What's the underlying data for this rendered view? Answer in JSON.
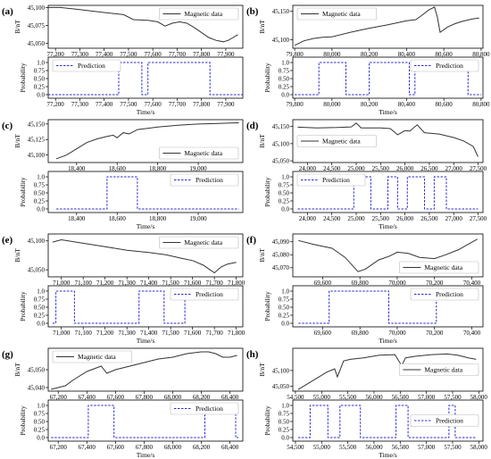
{
  "colors": {
    "magnetic": "#333333",
    "prediction": "#2b2bd6",
    "axis": "#000000"
  },
  "labels": {
    "mag_ylabel": "B/nT",
    "prob_ylabel": "Probability",
    "xlabel": "Time/s"
  },
  "chart_data": [
    {
      "panel": "(a)",
      "type": "line",
      "mag_legend": "Magnetic data",
      "mag_legend_pos": "top-right",
      "pred_legend": "Prediction",
      "pred_legend_pos": "top-left",
      "xlim": [
        77170,
        77970
      ],
      "xticks": [
        77200,
        77300,
        77400,
        77500,
        77600,
        77700,
        77800,
        77900
      ],
      "mag_ylim": [
        45043,
        45103
      ],
      "mag_yticks": [
        45050,
        45075,
        45100
      ],
      "mag_x": [
        77170,
        77220,
        77300,
        77400,
        77480,
        77520,
        77580,
        77620,
        77650,
        77680,
        77710,
        77740,
        77770,
        77800,
        77830,
        77860,
        77890,
        77910,
        77930,
        77950
      ],
      "mag_y": [
        45100,
        45100,
        45097,
        45093,
        45090,
        45083,
        45082,
        45080,
        45074,
        45078,
        45080,
        45078,
        45072,
        45065,
        45058,
        45054,
        45052,
        45054,
        45058,
        45062
      ],
      "pred": [
        [
          77170,
          0
        ],
        [
          77460,
          0
        ],
        [
          77460,
          1
        ],
        [
          77555,
          1
        ],
        [
          77555,
          0
        ],
        [
          77580,
          0
        ],
        [
          77580,
          1
        ],
        [
          77835,
          1
        ],
        [
          77835,
          0
        ],
        [
          77970,
          0
        ]
      ]
    },
    {
      "panel": "(b)",
      "type": "line",
      "mag_legend": "Magnetic data",
      "mag_legend_pos": "top-left",
      "pred_legend": "Prediction",
      "pred_legend_pos": "top-right",
      "xlim": [
        79790,
        80810
      ],
      "xticks": [
        79800,
        80000,
        80200,
        80400,
        80600,
        80800
      ],
      "mag_ylim": [
        45085,
        45160
      ],
      "mag_yticks": [
        45100,
        45150
      ],
      "mag_x": [
        79800,
        79850,
        79900,
        79950,
        80000,
        80100,
        80200,
        80300,
        80400,
        80450,
        80480,
        80520,
        80550,
        80565,
        80580,
        80620,
        80660,
        80700,
        80750,
        80790
      ],
      "mag_y": [
        45090,
        45098,
        45102,
        45104,
        45105,
        45113,
        45120,
        45126,
        45133,
        45135,
        45142,
        45152,
        45157,
        45140,
        45113,
        45122,
        45128,
        45132,
        45136,
        45138
      ],
      "pred": [
        [
          79800,
          0
        ],
        [
          79930,
          0
        ],
        [
          79930,
          1
        ],
        [
          80075,
          1
        ],
        [
          80075,
          0
        ],
        [
          80200,
          0
        ],
        [
          80200,
          1
        ],
        [
          80415,
          1
        ],
        [
          80415,
          0
        ],
        [
          80445,
          0
        ],
        [
          80445,
          1
        ],
        [
          80730,
          1
        ],
        [
          80730,
          0
        ],
        [
          80800,
          0
        ]
      ]
    },
    {
      "panel": "(c)",
      "type": "line",
      "mag_legend": "Magnetic data",
      "mag_legend_pos": "bottom-right",
      "pred_legend": "Prediction",
      "pred_legend_pos": "top-right",
      "xlim": [
        18260,
        19220
      ],
      "xticks": [
        18400,
        18600,
        18800,
        19000
      ],
      "mag_ylim": [
        45088,
        45157
      ],
      "mag_yticks": [
        45100,
        45125,
        45150
      ],
      "mag_x": [
        18300,
        18350,
        18400,
        18450,
        18500,
        18550,
        18580,
        18600,
        18630,
        18660,
        18700,
        18750,
        18800,
        18900,
        19000,
        19100,
        19200
      ],
      "mag_y": [
        45094,
        45100,
        45110,
        45120,
        45126,
        45130,
        45132,
        45128,
        45136,
        45134,
        45141,
        45143,
        45145,
        45148,
        45150,
        45151,
        45152
      ],
      "pred": [
        [
          18300,
          0
        ],
        [
          18550,
          0
        ],
        [
          18550,
          1
        ],
        [
          18700,
          1
        ],
        [
          18700,
          0
        ],
        [
          19200,
          0
        ]
      ]
    },
    {
      "panel": "(d)",
      "type": "line",
      "mag_legend": "Magnetic data",
      "mag_legend_pos": "center-left",
      "pred_legend": "Prediction",
      "pred_legend_pos": "top-left",
      "xlim": [
        23700,
        27600
      ],
      "xticks": [
        24000,
        24500,
        25000,
        25500,
        26000,
        26500,
        27000,
        27500
      ],
      "mag_ylim": [
        45045,
        45170
      ],
      "mag_yticks": [
        45050,
        45100,
        45150
      ],
      "mag_x": [
        23800,
        24200,
        24600,
        24900,
        25000,
        25100,
        25500,
        25700,
        25850,
        26000,
        26100,
        26250,
        26400,
        26700,
        27000,
        27200,
        27400,
        27500
      ],
      "mag_y": [
        45148,
        45146,
        45147,
        45149,
        45160,
        45146,
        45146,
        45144,
        45126,
        45138,
        45137,
        45155,
        45132,
        45128,
        45118,
        45108,
        45092,
        45062
      ],
      "pred": [
        [
          23800,
          0
        ],
        [
          24950,
          0
        ],
        [
          24950,
          1
        ],
        [
          25300,
          1
        ],
        [
          25300,
          0
        ],
        [
          25650,
          0
        ],
        [
          25650,
          1
        ],
        [
          25850,
          1
        ],
        [
          25850,
          0
        ],
        [
          26050,
          0
        ],
        [
          26050,
          1
        ],
        [
          26400,
          1
        ],
        [
          26400,
          0
        ],
        [
          26600,
          0
        ],
        [
          26600,
          1
        ],
        [
          26850,
          1
        ],
        [
          26850,
          0
        ],
        [
          27500,
          0
        ]
      ]
    },
    {
      "panel": "(e)",
      "type": "line",
      "mag_legend": "Magnetic data",
      "mag_legend_pos": "top-right",
      "pred_legend": "Prediction",
      "pred_legend_pos": "top-right",
      "xlim": [
        70940,
        71830
      ],
      "xticks": [
        71000,
        71100,
        71200,
        71300,
        71400,
        71500,
        71600,
        71700,
        71800
      ],
      "mag_ylim": [
        45038,
        45112
      ],
      "mag_yticks": [
        45050,
        45100
      ],
      "mag_x": [
        70960,
        71000,
        71100,
        71200,
        71300,
        71400,
        71480,
        71550,
        71600,
        71650,
        71680,
        71700,
        71730,
        71760,
        71800
      ],
      "mag_y": [
        45098,
        45102,
        45096,
        45090,
        45084,
        45080,
        45076,
        45070,
        45066,
        45058,
        45050,
        45045,
        45055,
        45060,
        45063
      ],
      "pred": [
        [
          70960,
          0
        ],
        [
          70975,
          0
        ],
        [
          70975,
          1
        ],
        [
          71060,
          1
        ],
        [
          71060,
          0
        ],
        [
          71355,
          0
        ],
        [
          71355,
          1
        ],
        [
          71470,
          1
        ],
        [
          71470,
          0
        ],
        [
          71565,
          0
        ],
        [
          71565,
          1
        ],
        [
          71800,
          1
        ]
      ]
    },
    {
      "panel": "(f)",
      "type": "line",
      "mag_legend": "Magnetic data",
      "mag_legend_pos": "bottom-right",
      "pred_legend": "Prediction",
      "pred_legend_pos": "top-right",
      "xlim": [
        69440,
        70460
      ],
      "xticks": [
        69600,
        69800,
        70000,
        70200,
        70400
      ],
      "mag_ylim": [
        45063,
        45096
      ],
      "mag_yticks": [
        45070,
        45080,
        45090
      ],
      "mag_x": [
        69470,
        69550,
        69650,
        69720,
        69790,
        69830,
        69900,
        69960,
        70000,
        70060,
        70120,
        70200,
        70260,
        70330,
        70380,
        70430
      ],
      "mag_y": [
        45091,
        45088,
        45085,
        45078,
        45067,
        45069,
        45076,
        45079,
        45082,
        45081,
        45078,
        45077,
        45080,
        45084,
        45088,
        45092
      ],
      "pred": [
        [
          69470,
          0
        ],
        [
          69635,
          0
        ],
        [
          69635,
          1
        ],
        [
          69955,
          1
        ],
        [
          69955,
          0
        ],
        [
          70210,
          0
        ],
        [
          70210,
          1
        ],
        [
          70430,
          1
        ]
      ]
    },
    {
      "panel": "(g)",
      "type": "line",
      "mag_legend": "Magnetic data",
      "mag_legend_pos": "top-left",
      "pred_legend": "Prediction",
      "pred_legend_pos": "top-right",
      "xlim": [
        67130,
        68490
      ],
      "xticks": [
        67200,
        67400,
        67600,
        67800,
        68000,
        68200,
        68400
      ],
      "mag_ylim": [
        45038,
        45062
      ],
      "mag_yticks": [
        45040,
        45050
      ],
      "mag_x": [
        67150,
        67200,
        67250,
        67300,
        67400,
        67500,
        67540,
        67600,
        67700,
        67800,
        67900,
        68000,
        68100,
        68200,
        68250,
        68300,
        68350,
        68400,
        68450
      ],
      "mag_y": [
        45039,
        45040,
        45041,
        45044,
        45049,
        45052,
        45048,
        45050,
        45052,
        45054,
        45056,
        45057,
        45059,
        45060,
        45060,
        45059,
        45057,
        45057,
        45058
      ],
      "pred": [
        [
          67150,
          0
        ],
        [
          67410,
          0
        ],
        [
          67410,
          1
        ],
        [
          67590,
          1
        ],
        [
          67590,
          0
        ],
        [
          68225,
          0
        ],
        [
          68225,
          1
        ],
        [
          68440,
          1
        ],
        [
          68440,
          0
        ],
        [
          68460,
          0
        ]
      ]
    },
    {
      "panel": "(h)",
      "type": "line",
      "mag_legend": "Magnetic data",
      "mag_legend_pos": "center-right",
      "pred_legend": "Prediction",
      "pred_legend_pos": "center-right",
      "xlim": [
        54450,
        58080
      ],
      "xticks": [
        54500,
        55000,
        55500,
        56000,
        56500,
        57000,
        57500,
        58000
      ],
      "mag_ylim": [
        45035,
        45170
      ],
      "mag_yticks": [
        45050,
        45100
      ],
      "mag_x": [
        54550,
        54700,
        54900,
        55100,
        55250,
        55300,
        55420,
        55550,
        55800,
        56100,
        56400,
        56530,
        56600,
        56800,
        57100,
        57400,
        57600,
        57800,
        57950
      ],
      "mag_y": [
        45040,
        45055,
        45075,
        45095,
        45105,
        45080,
        45130,
        45135,
        45140,
        45148,
        45150,
        45115,
        45140,
        45145,
        45150,
        45152,
        45148,
        45140,
        45135
      ],
      "pred": [
        [
          54550,
          0
        ],
        [
          54780,
          0
        ],
        [
          54780,
          1
        ],
        [
          55120,
          1
        ],
        [
          55120,
          0
        ],
        [
          55350,
          0
        ],
        [
          55350,
          1
        ],
        [
          55740,
          1
        ],
        [
          55740,
          0
        ],
        [
          56420,
          0
        ],
        [
          56420,
          1
        ],
        [
          56650,
          1
        ],
        [
          56650,
          0
        ],
        [
          57430,
          0
        ],
        [
          57430,
          1
        ],
        [
          57550,
          1
        ],
        [
          57550,
          0
        ],
        [
          57950,
          0
        ]
      ]
    }
  ]
}
